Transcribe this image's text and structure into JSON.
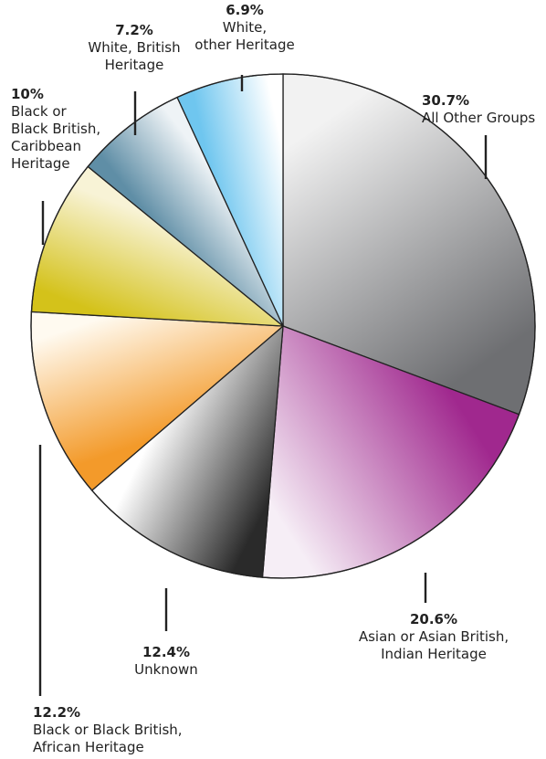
{
  "chart_data": {
    "type": "pie",
    "title": "",
    "start_angle_deg": 0,
    "direction": "clockwise",
    "slices": [
      {
        "label": "All Other Groups",
        "value": 30.7,
        "value_label": "30.7%",
        "colors": [
          "#6e6f72",
          "#f2f2f2"
        ]
      },
      {
        "label": "Asian or Asian British,\nIndian Heritage",
        "value": 20.6,
        "value_label": "20.6%",
        "colors": [
          "#f6eef6",
          "#a0288e"
        ]
      },
      {
        "label": "Unknown",
        "value": 12.4,
        "value_label": "12.4%",
        "colors": [
          "#ffffff",
          "#2a2a2a"
        ]
      },
      {
        "label": "Black or Black British,\nAfrican Heritage",
        "value": 12.2,
        "value_label": "12.2%",
        "colors": [
          "#fffaf0",
          "#f39a2a"
        ]
      },
      {
        "label": "Black or\nBlack British,\nCaribbean\nHeritage",
        "value": 10.0,
        "value_label": "10%",
        "colors": [
          "#f8f3d6",
          "#d4c21a"
        ]
      },
      {
        "label": "White, British\nHeritage",
        "value": 7.2,
        "value_label": "7.2%",
        "colors": [
          "#eef3f6",
          "#5f8ea6"
        ]
      },
      {
        "label": "White,\nother Heritage",
        "value": 6.9,
        "value_label": "6.9%",
        "colors": [
          "#ffffff",
          "#6fc6ef"
        ]
      }
    ]
  }
}
